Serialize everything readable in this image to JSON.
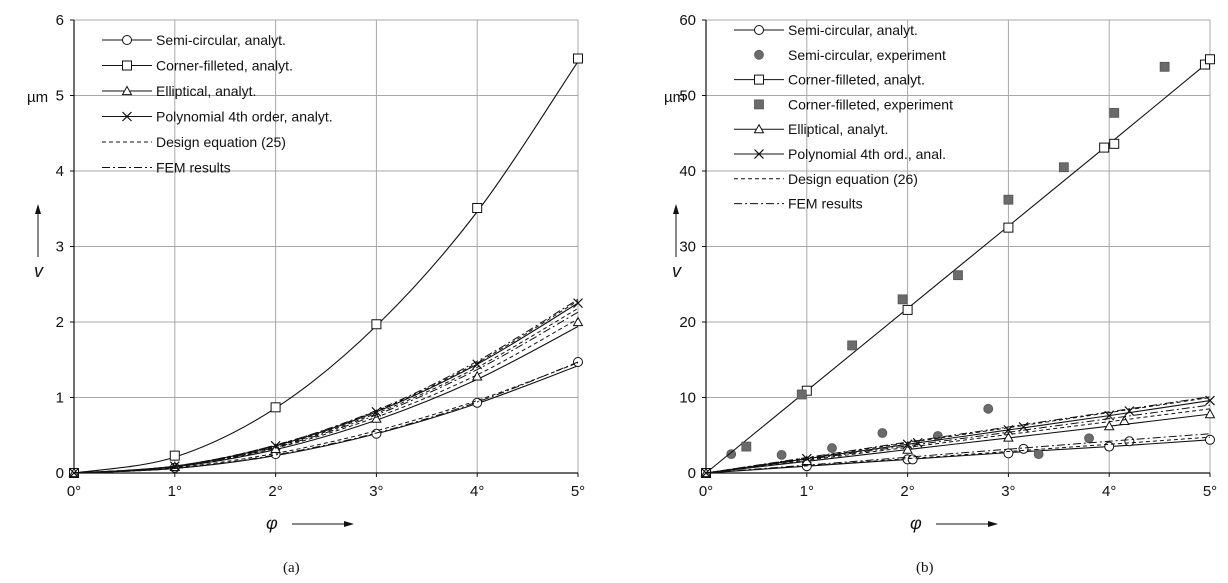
{
  "chart_data": [
    {
      "type": "line",
      "caption": "(a)",
      "xlabel": "φ",
      "ylabel": "v",
      "yunit": "µm",
      "xlim": [
        0,
        5
      ],
      "ylim": [
        0,
        6
      ],
      "xticks": [
        0,
        1,
        2,
        3,
        4,
        5
      ],
      "xtick_labels": [
        "0°",
        "1°",
        "2°",
        "3°",
        "4°",
        "5°"
      ],
      "yticks": [
        0,
        1,
        2,
        3,
        4,
        5,
        6
      ],
      "ytick_labels": [
        "0",
        "1",
        "2",
        "3",
        "4",
        "5",
        "6"
      ],
      "grid": true,
      "legend_position": "top-left",
      "legend": [
        "Semi-circular, analyt.",
        "Corner-filleted, analyt.",
        "Elliptical, analyt.",
        "Polynomial 4th order, analyt.",
        "Design equation (25)",
        "FEM results"
      ],
      "series": [
        {
          "name": "Semi-circular, analyt.",
          "marker": "circle",
          "style": "solid",
          "x": [
            0,
            1,
            2,
            3,
            4,
            5
          ],
          "y": [
            0,
            0.06,
            0.23,
            0.52,
            0.92,
            1.42
          ],
          "marker_y": [
            0,
            0.07,
            0.25,
            0.52,
            0.93,
            1.47
          ]
        },
        {
          "name": "Corner-filleted, analyt.",
          "marker": "square",
          "style": "solid",
          "x": [
            0,
            1,
            2,
            3,
            4,
            5
          ],
          "y": [
            0,
            0.21,
            0.86,
            1.95,
            3.46,
            5.45
          ],
          "marker_y": [
            0,
            0.23,
            0.87,
            1.97,
            3.51,
            5.49
          ]
        },
        {
          "name": "Elliptical, analyt.",
          "marker": "triangle",
          "style": "solid",
          "x": [
            0,
            1,
            2,
            3,
            4,
            5
          ],
          "y": [
            0,
            0.08,
            0.31,
            0.7,
            1.24,
            1.94
          ],
          "marker_y": [
            0,
            0.08,
            0.32,
            0.72,
            1.28,
            2.0
          ]
        },
        {
          "name": "Polynomial 4th order, analyt.",
          "marker": "cross",
          "style": "solid",
          "x": [
            0,
            1,
            2,
            3,
            4,
            5
          ],
          "y": [
            0,
            0.09,
            0.36,
            0.81,
            1.44,
            2.25
          ],
          "marker_y": [
            0,
            0.09,
            0.36,
            0.81,
            1.44,
            2.25
          ]
        },
        {
          "name": "Design equation (25)",
          "marker": "none",
          "style": "dashed",
          "curves": [
            [
              0,
              0.07,
              0.26,
              0.56,
              0.96,
              1.46
            ],
            [
              0,
              0.08,
              0.33,
              0.74,
              1.3,
              2.04
            ],
            [
              0,
              0.088,
              0.35,
              0.79,
              1.4,
              2.18
            ],
            [
              0,
              0.09,
              0.37,
              0.82,
              1.46,
              2.28
            ]
          ]
        },
        {
          "name": "FEM results",
          "marker": "none",
          "style": "dashdot",
          "curves": [
            [
              0,
              0.06,
              0.24,
              0.53,
              0.94,
              1.47
            ],
            [
              0,
              0.086,
              0.34,
              0.77,
              1.37,
              2.13
            ],
            [
              0,
              0.092,
              0.37,
              0.83,
              1.48,
              2.3
            ]
          ]
        }
      ]
    },
    {
      "type": "line",
      "caption": "(b)",
      "xlabel": "φ",
      "ylabel": "v",
      "yunit": "µm",
      "xlim": [
        0,
        5
      ],
      "ylim": [
        0,
        60
      ],
      "xticks": [
        0,
        1,
        2,
        3,
        4,
        5
      ],
      "xtick_labels": [
        "0°",
        "1°",
        "2°",
        "3°",
        "4°",
        "5°"
      ],
      "yticks": [
        0,
        10,
        20,
        30,
        40,
        50,
        60
      ],
      "ytick_labels": [
        "0",
        "10",
        "20",
        "30",
        "40",
        "50",
        "60"
      ],
      "grid": true,
      "legend_position": "top-left",
      "legend": [
        "Semi-circular, analyt.",
        "Semi-circular, experiment",
        "Corner-filleted, analyt.",
        "Corner-filleted, experiment",
        "Elliptical, analyt.",
        "Polynomial 4th ord., anal.",
        "Design equation (26)",
        "FEM results"
      ],
      "series": [
        {
          "name": "Semi-circular, analyt.",
          "marker": "circle",
          "style": "solid",
          "x": [
            0,
            1,
            2,
            3,
            4,
            5
          ],
          "y": [
            0,
            0.9,
            1.8,
            2.7,
            3.5,
            4.4
          ],
          "marker_points": [
            [
              0,
              0
            ],
            [
              1,
              0.9
            ],
            [
              2,
              1.8
            ],
            [
              2.05,
              1.8
            ],
            [
              3,
              2.6
            ],
            [
              3.15,
              3.2
            ],
            [
              4,
              3.5
            ],
            [
              4.2,
              4.2
            ],
            [
              5,
              4.4
            ]
          ]
        },
        {
          "name": "Semi-circular, experiment",
          "marker": "filled-circle",
          "style": "none",
          "points": [
            [
              0.25,
              2.5
            ],
            [
              0.75,
              2.4
            ],
            [
              1.25,
              3.3
            ],
            [
              1.75,
              5.3
            ],
            [
              2.3,
              4.9
            ],
            [
              2.8,
              8.5
            ],
            [
              3.3,
              2.5
            ],
            [
              3.8,
              4.6
            ]
          ]
        },
        {
          "name": "Corner-filleted, analyt.",
          "marker": "square",
          "style": "solid",
          "x": [
            0,
            1,
            2,
            3,
            4,
            5
          ],
          "y": [
            0,
            10.9,
            21.8,
            32.7,
            43.6,
            54.6
          ],
          "marker_points": [
            [
              0,
              0
            ],
            [
              1,
              10.9
            ],
            [
              2,
              21.6
            ],
            [
              3,
              32.5
            ],
            [
              3.95,
              43.1
            ],
            [
              4.05,
              43.6
            ],
            [
              4.95,
              54.1
            ],
            [
              5,
              54.8
            ]
          ]
        },
        {
          "name": "Corner-filleted, experiment",
          "marker": "filled-square",
          "style": "none",
          "points": [
            [
              0.4,
              3.5
            ],
            [
              0.95,
              10.4
            ],
            [
              1.45,
              16.9
            ],
            [
              1.95,
              23.0
            ],
            [
              2.5,
              26.2
            ],
            [
              3.0,
              36.2
            ],
            [
              3.55,
              40.5
            ],
            [
              4.05,
              47.7
            ],
            [
              4.55,
              53.8
            ]
          ]
        },
        {
          "name": "Elliptical, analyt.",
          "marker": "triangle",
          "style": "solid",
          "x": [
            0,
            1,
            2,
            3,
            4,
            5
          ],
          "y": [
            0,
            1.55,
            3.1,
            4.65,
            6.2,
            7.8
          ],
          "marker_points": [
            [
              0,
              0
            ],
            [
              1,
              1.6
            ],
            [
              2,
              3.1
            ],
            [
              3,
              4.7
            ],
            [
              4,
              6.2
            ],
            [
              4.15,
              6.9
            ],
            [
              5,
              7.8
            ]
          ]
        },
        {
          "name": "Polynomial 4th ord., anal.",
          "marker": "cross",
          "style": "solid",
          "x": [
            0,
            1,
            2,
            3,
            4,
            5
          ],
          "y": [
            0,
            1.9,
            3.8,
            5.7,
            7.6,
            9.6
          ],
          "marker_points": [
            [
              0,
              0
            ],
            [
              1,
              1.9
            ],
            [
              2,
              3.8
            ],
            [
              2.1,
              4.0
            ],
            [
              3,
              5.7
            ],
            [
              3.15,
              6.1
            ],
            [
              4,
              7.6
            ],
            [
              4.2,
              8.2
            ],
            [
              5,
              9.6
            ]
          ]
        },
        {
          "name": "Design equation (26)",
          "marker": "none",
          "style": "dashed",
          "curves": [
            [
              0,
              0.95,
              1.9,
              2.85,
              3.8,
              4.75
            ],
            [
              0,
              1.7,
              3.4,
              5.1,
              6.8,
              8.5
            ],
            [
              0,
              2.0,
              4.0,
              6.0,
              8.0,
              10.0
            ]
          ]
        },
        {
          "name": "FEM results",
          "marker": "none",
          "style": "dashdot",
          "curves": [
            [
              0,
              1.05,
              2.1,
              3.15,
              4.2,
              5.2
            ],
            [
              0,
              1.8,
              3.6,
              5.4,
              7.2,
              9.0
            ],
            [
              0,
              2.05,
              4.1,
              6.1,
              8.1,
              10.1
            ]
          ]
        }
      ]
    }
  ]
}
